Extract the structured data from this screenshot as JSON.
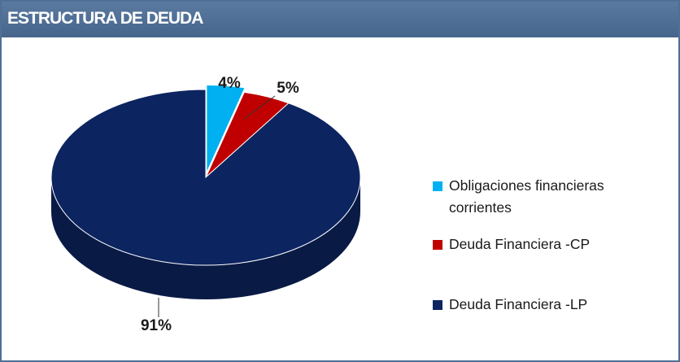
{
  "chart_data": {
    "type": "pie",
    "title": "ESTRUCTURA DE DEUDA",
    "categories": [
      "Obligaciones financieras corrientes",
      "Deuda Financiera -CP",
      "Deuda Financiera -LP"
    ],
    "values": [
      4,
      5,
      91
    ],
    "value_labels": [
      "4%",
      "5%",
      "91%"
    ],
    "colors": [
      "#00b0f0",
      "#c00000",
      "#0c2460"
    ],
    "legend": "right"
  }
}
